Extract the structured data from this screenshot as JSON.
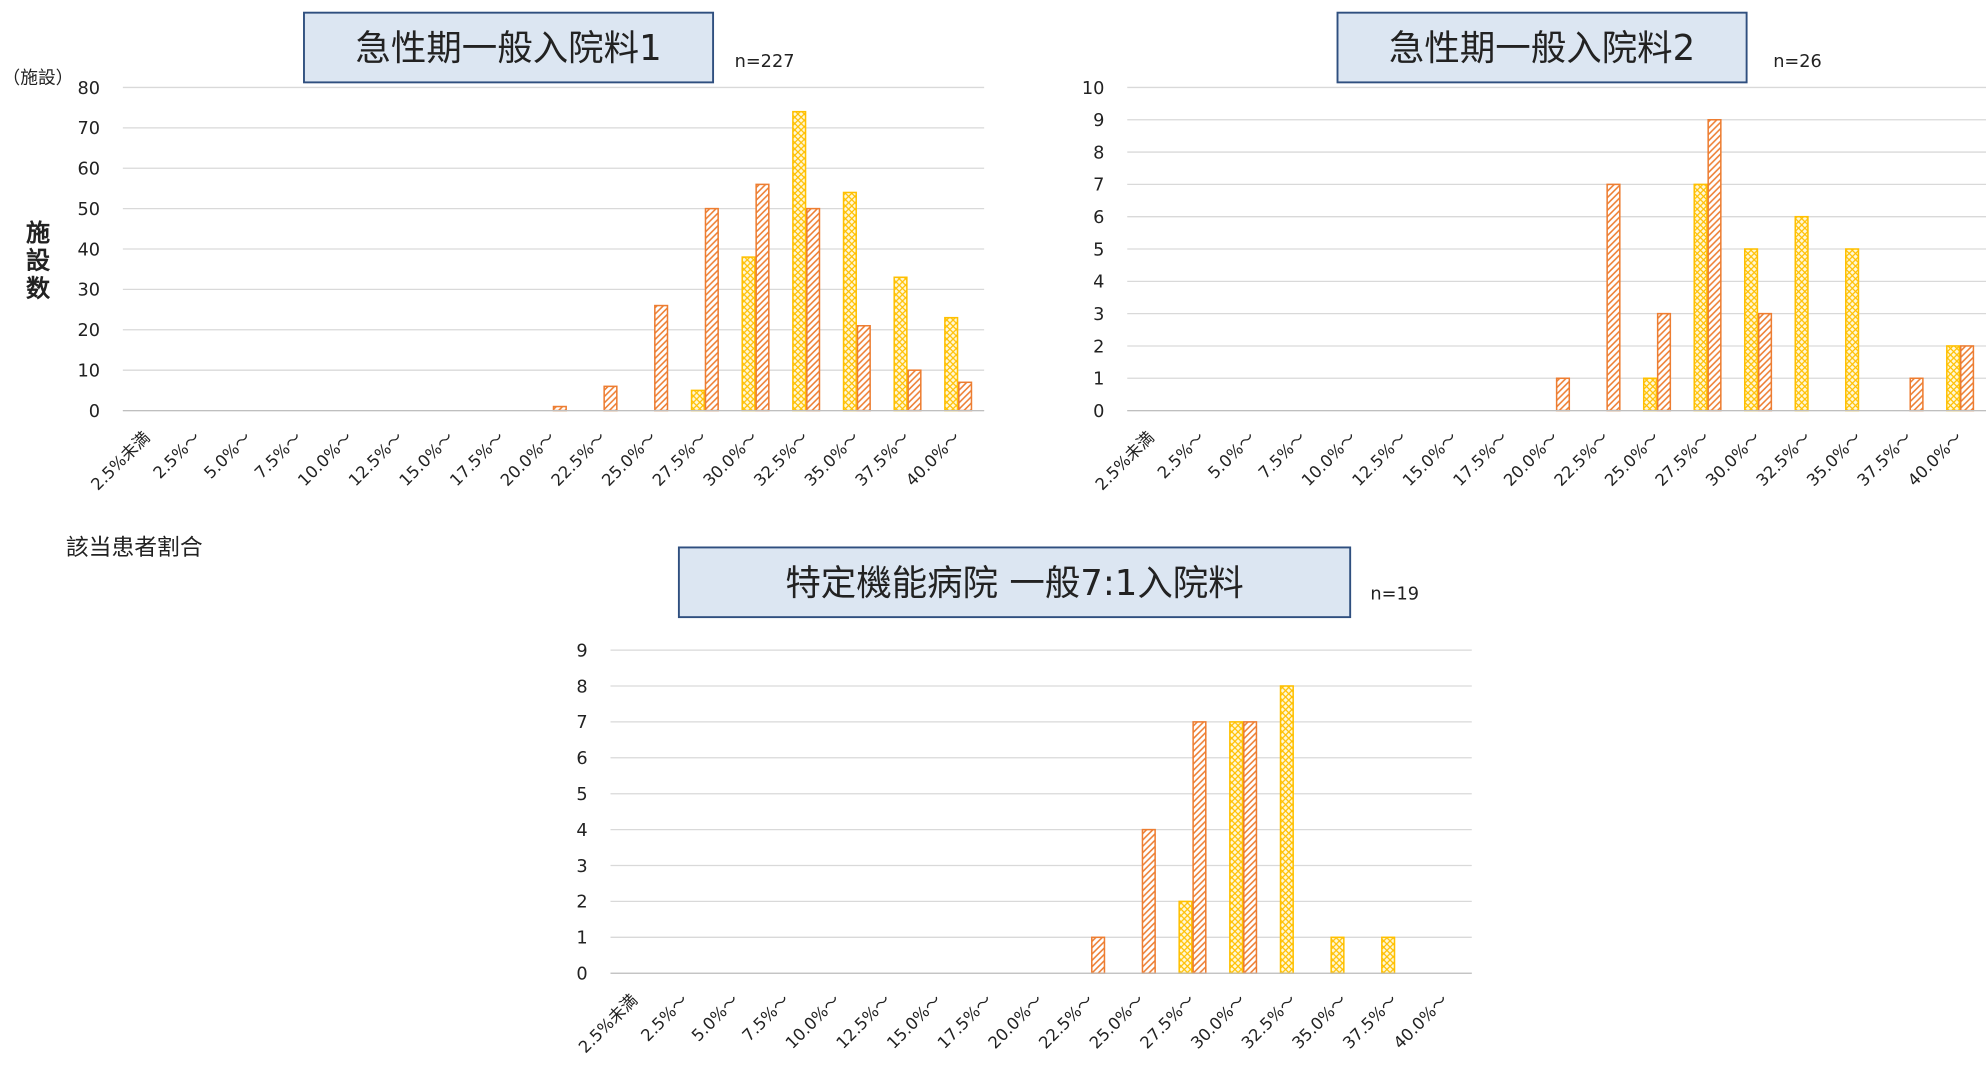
{
  "chart_data": [
    {
      "type": "bar",
      "title": "急性期一般入院料1",
      "annotation": "n=227",
      "y_unit": "（施設）",
      "ylabel": "施設数",
      "xlabel": "該当患者割合",
      "categories": [
        "2.5%未満",
        "2.5%～",
        "5.0%～",
        "7.5%～",
        "10.0%～",
        "12.5%～",
        "15.0%～",
        "17.5%～",
        "20.0%～",
        "22.5%～",
        "25.0%～",
        "27.5%～",
        "30.0%～",
        "32.5%～",
        "35.0%～",
        "37.5%～",
        "40.0%～"
      ],
      "series": [
        {
          "color": "#ffc000",
          "values": [
            0,
            0,
            0,
            0,
            0,
            0,
            0,
            0,
            0,
            0,
            0,
            5,
            38,
            74,
            54,
            33,
            23
          ]
        },
        {
          "color": "#ed7d31",
          "values": [
            0,
            0,
            0,
            0,
            0,
            0,
            0,
            0,
            1,
            6,
            26,
            50,
            56,
            50,
            21,
            10,
            7
          ]
        }
      ],
      "ylim": [
        0,
        80
      ],
      "yticks": [
        0,
        10,
        20,
        30,
        40,
        50,
        60,
        70,
        80
      ],
      "grid": true
    },
    {
      "type": "bar",
      "title": "急性期一般入院料2",
      "annotation": "n=26",
      "categories": [
        "2.5%未満",
        "2.5%～",
        "5.0%～",
        "7.5%～",
        "10.0%～",
        "12.5%～",
        "15.0%～",
        "17.5%～",
        "20.0%～",
        "22.5%～",
        "25.0%～",
        "27.5%～",
        "30.0%～",
        "32.5%～",
        "35.0%～",
        "37.5%～",
        "40.0%～"
      ],
      "series": [
        {
          "color": "#ffc000",
          "values": [
            0,
            0,
            0,
            0,
            0,
            0,
            0,
            0,
            0,
            0,
            1,
            7,
            5,
            6,
            5,
            0,
            2
          ]
        },
        {
          "color": "#ed7d31",
          "values": [
            0,
            0,
            0,
            0,
            0,
            0,
            0,
            0,
            1,
            7,
            3,
            9,
            3,
            0,
            0,
            1,
            2
          ]
        }
      ],
      "ylim": [
        0,
        10
      ],
      "yticks": [
        0,
        1,
        2,
        3,
        4,
        5,
        6,
        7,
        8,
        9,
        10
      ],
      "grid": true
    },
    {
      "type": "bar",
      "title": "特定機能病院 一般7:1入院料",
      "annotation": "n=19",
      "categories": [
        "2.5%未満",
        "2.5%～",
        "5.0%～",
        "7.5%～",
        "10.0%～",
        "12.5%～",
        "15.0%～",
        "17.5%～",
        "20.0%～",
        "22.5%～",
        "25.0%～",
        "27.5%～",
        "30.0%～",
        "32.5%～",
        "35.0%～",
        "37.5%～",
        "40.0%～"
      ],
      "series": [
        {
          "color": "#ffc000",
          "values": [
            0,
            0,
            0,
            0,
            0,
            0,
            0,
            0,
            0,
            0,
            0,
            2,
            7,
            8,
            1,
            1,
            0
          ]
        },
        {
          "color": "#ed7d31",
          "values": [
            0,
            0,
            0,
            0,
            0,
            0,
            0,
            0,
            0,
            1,
            4,
            7,
            7,
            0,
            0,
            0,
            0
          ]
        }
      ],
      "ylim": [
        0,
        9
      ],
      "yticks": [
        0,
        1,
        2,
        3,
        4,
        5,
        6,
        7,
        8,
        9
      ],
      "grid": true
    }
  ]
}
